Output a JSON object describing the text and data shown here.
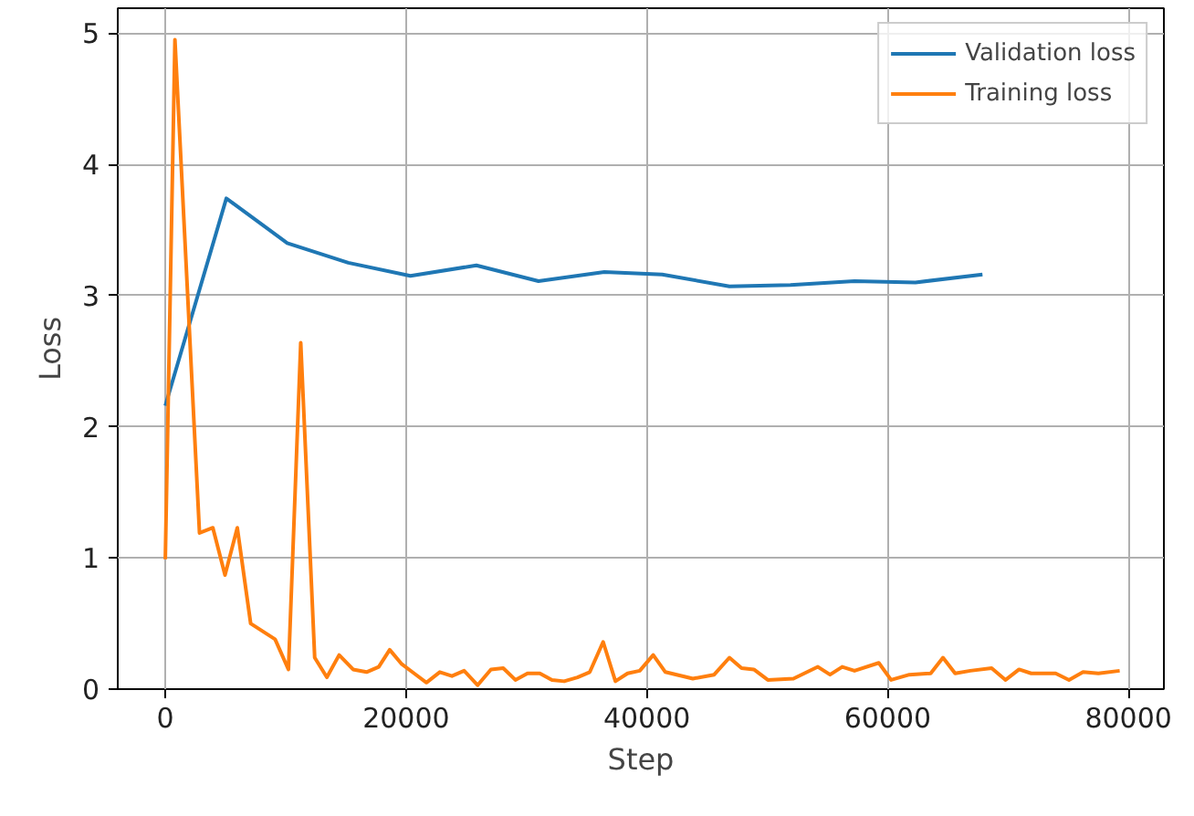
{
  "chart_data": {
    "type": "line",
    "xlabel": "Step",
    "ylabel": "Loss",
    "xlim": [
      -3950,
      82950
    ],
    "ylim": [
      0,
      5.19
    ],
    "xticks": [
      0,
      20000,
      40000,
      60000,
      80000
    ],
    "yticks": [
      0,
      1,
      2,
      3,
      4,
      5
    ],
    "grid": true,
    "legend": "top right",
    "series": [
      {
        "name": "Validation loss",
        "color": "#1f77b4",
        "x": [
          0,
          5070,
          10130,
          15200,
          20360,
          25840,
          31000,
          36470,
          41280,
          46860,
          51930,
          57250,
          62310,
          67880
        ],
        "values": [
          2.16,
          3.74,
          3.4,
          3.25,
          3.15,
          3.23,
          3.11,
          3.18,
          3.16,
          3.07,
          3.08,
          3.11,
          3.1,
          3.16
        ]
      },
      {
        "name": "Training loss",
        "color": "#ff7f0e",
        "x": [
          0,
          800,
          2840,
          3950,
          4960,
          5980,
          7090,
          9120,
          10230,
          11250,
          12410,
          13420,
          14440,
          15600,
          16720,
          17730,
          18640,
          19650,
          20670,
          21690,
          22800,
          23810,
          24820,
          25940,
          27050,
          28070,
          29080,
          30090,
          31110,
          32120,
          33130,
          34240,
          35260,
          36370,
          37390,
          38400,
          39410,
          40530,
          41540,
          43820,
          45590,
          46860,
          47870,
          48890,
          50050,
          52180,
          54210,
          55220,
          56230,
          57250,
          59270,
          60290,
          61810,
          63580,
          64600,
          65610,
          66870,
          68640,
          69800,
          70920,
          71930,
          73960,
          75070,
          76240,
          77510,
          79280
        ],
        "values": [
          0.99,
          4.95,
          1.19,
          1.23,
          0.87,
          1.23,
          0.5,
          0.38,
          0.15,
          2.64,
          0.24,
          0.09,
          0.26,
          0.15,
          0.13,
          0.17,
          0.3,
          0.19,
          0.12,
          0.05,
          0.13,
          0.1,
          0.14,
          0.03,
          0.15,
          0.16,
          0.07,
          0.12,
          0.12,
          0.07,
          0.06,
          0.09,
          0.13,
          0.36,
          0.06,
          0.12,
          0.14,
          0.26,
          0.13,
          0.08,
          0.11,
          0.24,
          0.16,
          0.15,
          0.07,
          0.08,
          0.17,
          0.11,
          0.17,
          0.14,
          0.2,
          0.07,
          0.11,
          0.12,
          0.24,
          0.12,
          0.14,
          0.16,
          0.07,
          0.15,
          0.12,
          0.12,
          0.07,
          0.13,
          0.12,
          0.14
        ]
      }
    ]
  }
}
